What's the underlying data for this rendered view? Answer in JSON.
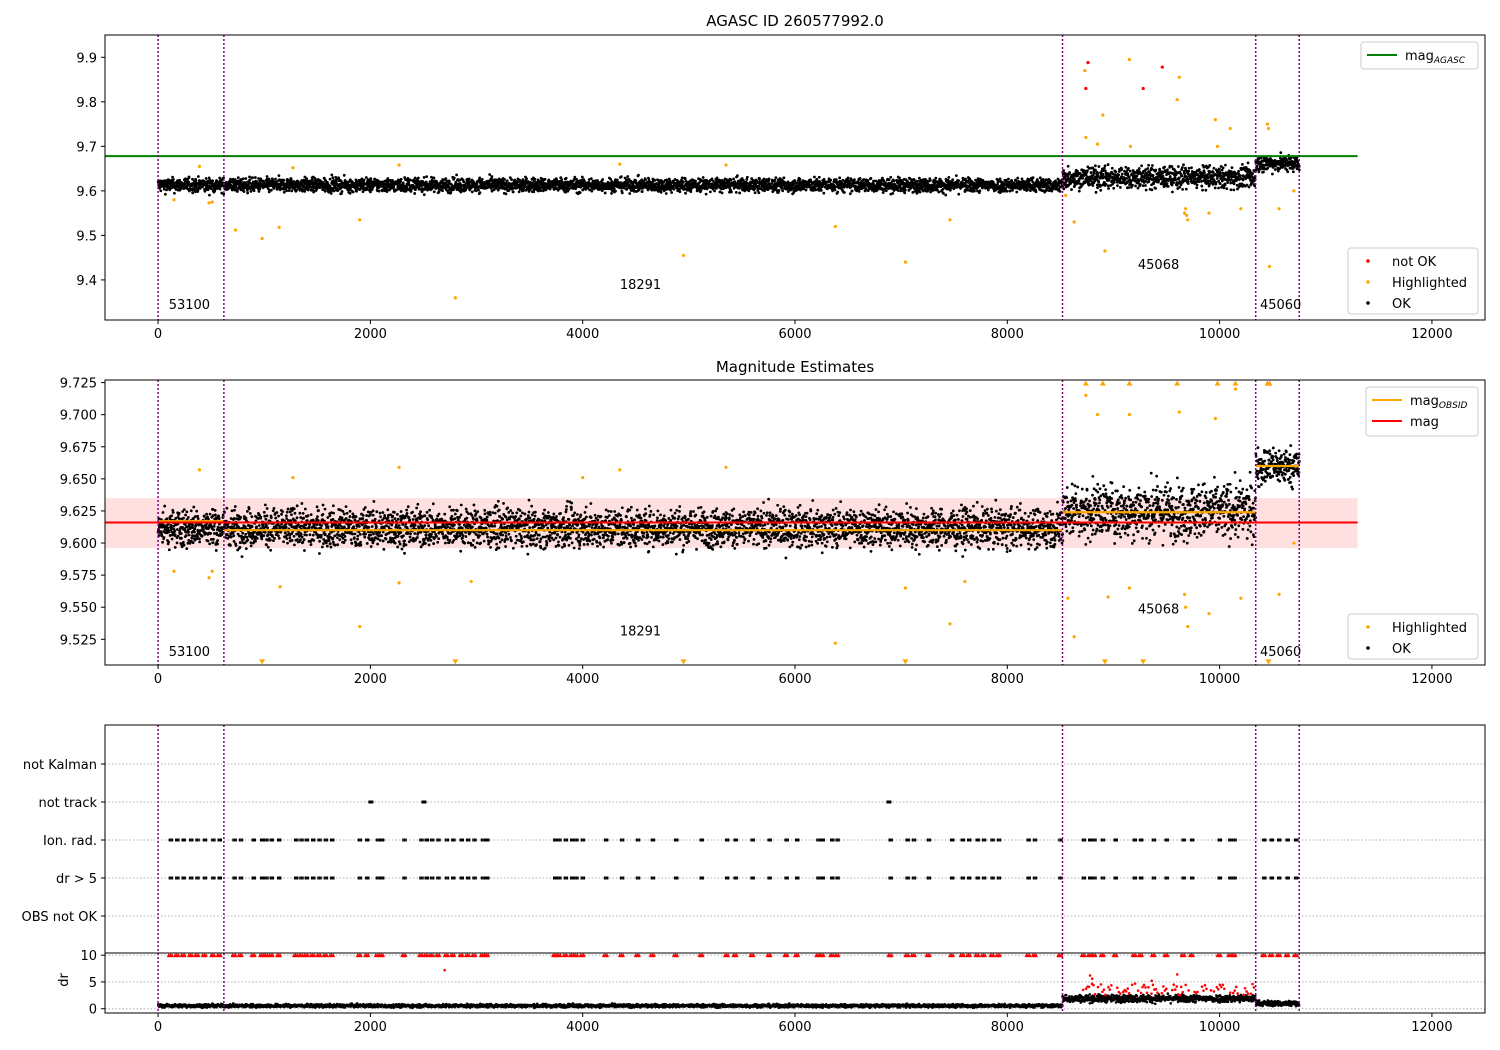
{
  "chart_data": [
    {
      "type": "scatter",
      "title": "AGASC ID 260577992.0",
      "xlim": [
        -500,
        12500
      ],
      "ylim": [
        9.31,
        9.95
      ],
      "x_ticks": [
        0,
        2000,
        4000,
        6000,
        8000,
        10000,
        12000
      ],
      "y_ticks": [
        9.4,
        9.5,
        9.6,
        9.7,
        9.8,
        9.9
      ],
      "y_tick_labels": [
        "9.4",
        "9.5",
        "9.6",
        "9.7",
        "9.8",
        "9.9"
      ],
      "obs_boundaries": [
        0,
        620,
        8520,
        10340,
        10750
      ],
      "obs_labels": [
        {
          "text": "53100",
          "x": 100,
          "y": 9.335
        },
        {
          "text": "18291",
          "x": 4350,
          "y": 9.38
        },
        {
          "text": "45068",
          "x": 9230,
          "y": 9.425
        },
        {
          "text": "45060",
          "x": 10380,
          "y": 9.335
        }
      ],
      "lines": [
        {
          "name": "mag",
          "subscript": "AGASC",
          "y": 9.678,
          "x_range": [
            -500,
            11300
          ],
          "color": "#008000"
        }
      ],
      "series": [
        {
          "name": "not OK",
          "color": "#ff0000",
          "points": [
            [
              8740,
              9.83
            ],
            [
              8760,
              9.888
            ],
            [
              9280,
              9.83
            ],
            [
              9460,
              9.878
            ]
          ]
        },
        {
          "name": "Highlighted",
          "color": "#ffa500",
          "points": [
            [
              150,
              9.58
            ],
            [
              480,
              9.573
            ],
            [
              510,
              9.575
            ],
            [
              730,
              9.512
            ],
            [
              980,
              9.493
            ],
            [
              1140,
              9.518
            ],
            [
              1900,
              9.535
            ],
            [
              2800,
              9.36
            ],
            [
              4950,
              9.455
            ],
            [
              6380,
              9.52
            ],
            [
              7040,
              9.44
            ],
            [
              7460,
              9.535
            ],
            [
              8550,
              9.59
            ],
            [
              8630,
              9.53
            ],
            [
              8730,
              9.87
            ],
            [
              8740,
              9.72
            ],
            [
              8850,
              9.705
            ],
            [
              8900,
              9.77
            ],
            [
              8920,
              9.465
            ],
            [
              9150,
              9.895
            ],
            [
              9160,
              9.7
            ],
            [
              9620,
              9.855
            ],
            [
              9600,
              9.805
            ],
            [
              9670,
              9.55
            ],
            [
              9680,
              9.56
            ],
            [
              9690,
              9.545
            ],
            [
              9700,
              9.535
            ],
            [
              9900,
              9.55
            ],
            [
              9960,
              9.76
            ],
            [
              9980,
              9.7
            ],
            [
              10100,
              9.74
            ],
            [
              10200,
              9.56
            ],
            [
              10450,
              9.75
            ],
            [
              10460,
              9.74
            ],
            [
              10470,
              9.43
            ],
            [
              10560,
              9.56
            ],
            [
              10700,
              9.6
            ],
            [
              390,
              9.655
            ],
            [
              1270,
              9.652
            ],
            [
              2270,
              9.658
            ],
            [
              4350,
              9.66
            ],
            [
              5350,
              9.658
            ]
          ]
        },
        {
          "name": "OK",
          "color": "#000000",
          "segments": [
            {
              "x0": 0,
              "x1": 8520,
              "center": 9.613,
              "spread": 0.022
            },
            {
              "x0": 8520,
              "x1": 10340,
              "center": 9.63,
              "spread": 0.035
            },
            {
              "x0": 10340,
              "x1": 10750,
              "center": 9.662,
              "spread": 0.025
            }
          ]
        }
      ],
      "legend_upper": "top-right",
      "legend_lower": "bottom-right"
    },
    {
      "type": "scatter",
      "title": "Magnitude Estimates",
      "xlim": [
        -500,
        12500
      ],
      "ylim": [
        9.505,
        9.727
      ],
      "x_ticks": [
        0,
        2000,
        4000,
        6000,
        8000,
        10000,
        12000
      ],
      "y_ticks": [
        9.525,
        9.55,
        9.575,
        9.6,
        9.625,
        9.65,
        9.675,
        9.7,
        9.725
      ],
      "y_tick_labels": [
        "9.525",
        "9.550",
        "9.575",
        "9.600",
        "9.625",
        "9.650",
        "9.675",
        "9.700",
        "9.725"
      ],
      "obs_boundaries": [
        0,
        620,
        8520,
        10340,
        10750
      ],
      "obs_labels": [
        {
          "text": "53100",
          "x": 100,
          "y": 9.512
        },
        {
          "text": "18291",
          "x": 4350,
          "y": 9.528
        },
        {
          "text": "45068",
          "x": 9230,
          "y": 9.545
        },
        {
          "text": "45060",
          "x": 10380,
          "y": 9.512
        }
      ],
      "band": {
        "y0": 9.596,
        "y1": 9.635,
        "x_range": [
          -500,
          11300
        ],
        "color": "#ffcccc"
      },
      "lines": [
        {
          "name": "mag",
          "subscript": "OBSID",
          "color": "#ffa500",
          "segments": [
            [
              0,
              620,
              9.617
            ],
            [
              620,
              8520,
              9.61
            ],
            [
              8520,
              10340,
              9.624
            ],
            [
              10340,
              10750,
              9.66
            ]
          ]
        },
        {
          "name": "mag",
          "color": "#ff0000",
          "y": 9.616,
          "x_range": [
            -500,
            11300
          ]
        }
      ],
      "series": [
        {
          "name": "Highlighted",
          "color": "#ffa500",
          "points": [
            [
              150,
              9.578
            ],
            [
              480,
              9.573
            ],
            [
              510,
              9.578
            ],
            [
              1150,
              9.566
            ],
            [
              1900,
              9.535
            ],
            [
              2270,
              9.569
            ],
            [
              2950,
              9.57
            ],
            [
              6380,
              9.522
            ],
            [
              7040,
              9.565
            ],
            [
              7460,
              9.537
            ],
            [
              7600,
              9.57
            ],
            [
              8570,
              9.557
            ],
            [
              8630,
              9.527
            ],
            [
              8950,
              9.558
            ],
            [
              9150,
              9.565
            ],
            [
              9670,
              9.56
            ],
            [
              9680,
              9.55
            ],
            [
              9700,
              9.535
            ],
            [
              9900,
              9.545
            ],
            [
              10200,
              9.557
            ],
            [
              10560,
              9.56
            ],
            [
              10700,
              9.6
            ],
            [
              8740,
              9.715
            ],
            [
              8850,
              9.7
            ],
            [
              9150,
              9.7
            ],
            [
              9620,
              9.702
            ],
            [
              9960,
              9.697
            ],
            [
              10150,
              9.72
            ],
            [
              390,
              9.657
            ],
            [
              1270,
              9.651
            ],
            [
              2270,
              9.659
            ],
            [
              4350,
              9.657
            ],
            [
              5350,
              9.659
            ],
            [
              4000,
              9.651
            ]
          ]
        },
        {
          "name": "Highlighted clipped",
          "color": "#ffa500",
          "marker": "triangle-down",
          "points": [
            [
              980,
              9.507
            ],
            [
              2800,
              9.507
            ],
            [
              4950,
              9.507
            ],
            [
              7040,
              9.507
            ],
            [
              8920,
              9.507
            ],
            [
              9280,
              9.507
            ],
            [
              10460,
              9.507
            ]
          ]
        },
        {
          "name": "Highlighted clipped high",
          "color": "#ffa500",
          "marker": "triangle-up",
          "points": [
            [
              8740,
              9.725
            ],
            [
              8900,
              9.725
            ],
            [
              9150,
              9.725
            ],
            [
              9600,
              9.725
            ],
            [
              9980,
              9.725
            ],
            [
              10150,
              9.725
            ],
            [
              10450,
              9.725
            ],
            [
              10470,
              9.725
            ]
          ]
        },
        {
          "name": "OK",
          "color": "#000000",
          "segments": [
            {
              "x0": 0,
              "x1": 8520,
              "center": 9.612,
              "spread": 0.021
            },
            {
              "x0": 8520,
              "x1": 10340,
              "center": 9.625,
              "spread": 0.03
            },
            {
              "x0": 10340,
              "x1": 10750,
              "center": 9.66,
              "spread": 0.02
            }
          ]
        }
      ],
      "legend_upper": "top-right",
      "legend_lower": "bottom-right"
    },
    {
      "type": "scatter",
      "title": "",
      "xlim": [
        -500,
        12500
      ],
      "categories": [
        "not Kalman",
        "not track",
        "Ion. rad.",
        "dr > 5",
        "OBS not OK"
      ],
      "obs_boundaries": [
        0,
        620,
        8520,
        10340,
        10750
      ],
      "not_track_x": [
        2000,
        2500,
        6880
      ],
      "flag_clusters_x": [
        100,
        160,
        220,
        290,
        350,
        420,
        500,
        560,
        700,
        760,
        880,
        960,
        1000,
        1050,
        1120,
        1280,
        1330,
        1380,
        1440,
        1500,
        1560,
        1620,
        1880,
        1950,
        2050,
        2090,
        2300,
        2460,
        2510,
        2560,
        2620,
        2700,
        2760,
        2840,
        2900,
        2960,
        3040,
        3080,
        3720,
        3760,
        3820,
        3880,
        3920,
        3980,
        4200,
        4350,
        4500,
        4640,
        4860,
        5100,
        5340,
        5420,
        5580,
        5740,
        5900,
        6000,
        6200,
        6240,
        6330,
        6380,
        6880,
        7040,
        7100,
        7240,
        7460,
        7560,
        7620,
        7700,
        7760,
        7840,
        7900,
        8180,
        8240,
        8480,
        8700,
        8760,
        8800,
        8880,
        9000,
        9180,
        9240,
        9360,
        9480,
        9640,
        9720,
        9980,
        10080,
        10120,
        10400,
        10470,
        10540,
        10620,
        10700
      ]
    },
    {
      "type": "scatter",
      "ylabel": "dr",
      "xlim": [
        -500,
        12500
      ],
      "ylim": [
        -0.8,
        10.4
      ],
      "x_ticks": [
        0,
        2000,
        4000,
        6000,
        8000,
        10000,
        12000
      ],
      "y_ticks": [
        0,
        5,
        10
      ],
      "y_tick_labels": [
        "0",
        "5",
        "10"
      ],
      "obs_boundaries": [
        0,
        620,
        8520,
        10340,
        10750
      ],
      "series": [
        {
          "name": "dr",
          "color": "#000000",
          "segments": [
            {
              "x0": 0,
              "x1": 8520,
              "center": 0.55,
              "spread": 0.35
            },
            {
              "x0": 8520,
              "x1": 10340,
              "center": 1.9,
              "spread": 0.8
            },
            {
              "x0": 10340,
              "x1": 10750,
              "center": 1.0,
              "spread": 0.6
            }
          ]
        },
        {
          "name": "dr > 5",
          "color": "#ff0000",
          "clipped_y": 10,
          "outliers": [
            [
              2700,
              7.2
            ],
            [
              8780,
              6.2
            ],
            [
              8800,
              5.6
            ],
            [
              9600,
              6.4
            ],
            [
              9360,
              5.2
            ]
          ]
        }
      ]
    }
  ]
}
